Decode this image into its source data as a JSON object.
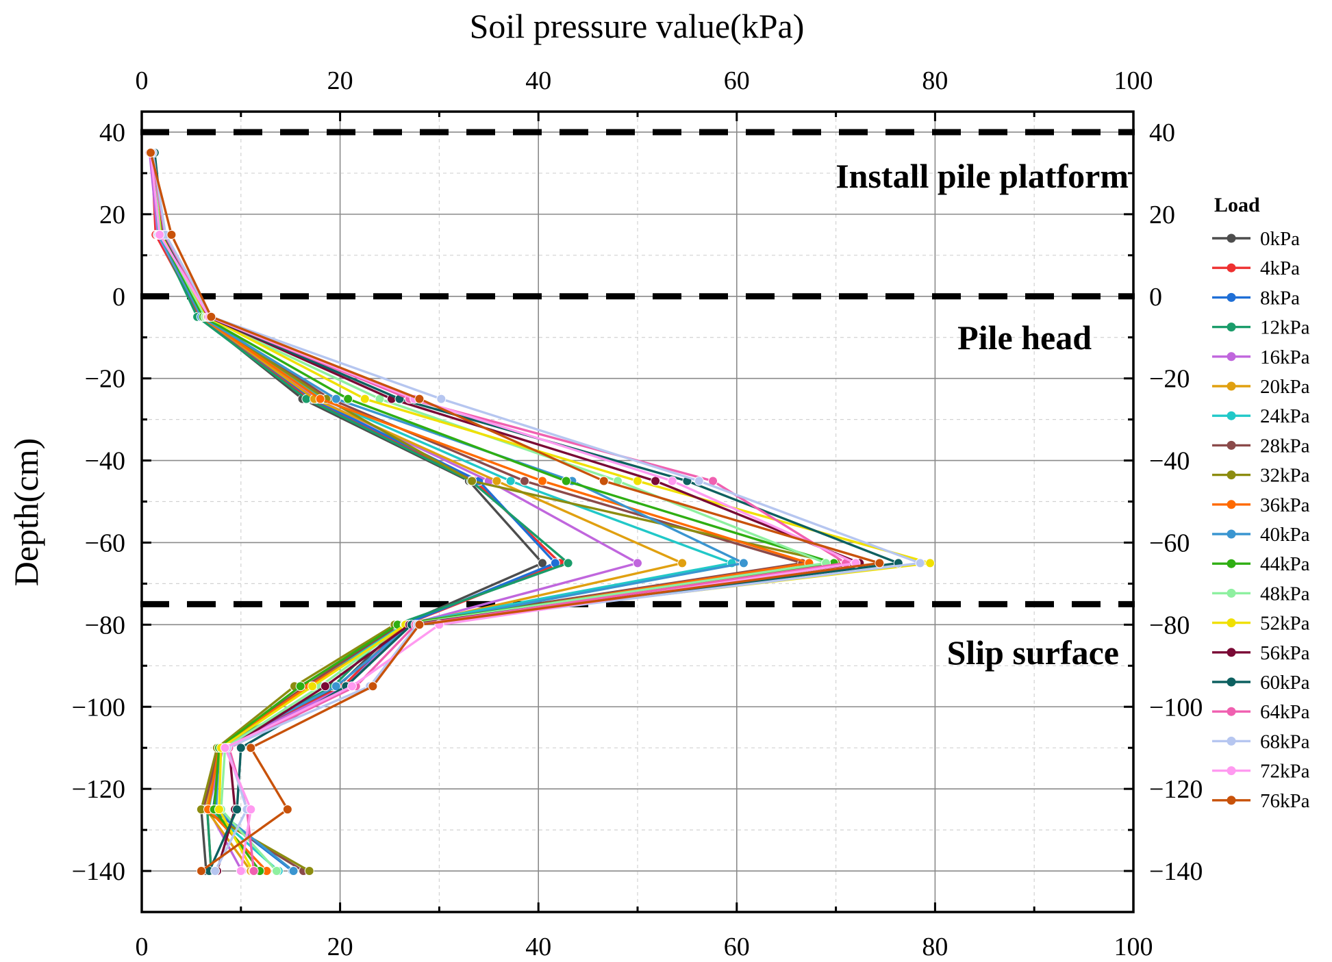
{
  "chart_data": {
    "type": "line",
    "title": "",
    "xlabel": "Soil pressure value(kPa)",
    "ylabel": "Depth(cm)",
    "xlim": [
      0,
      100
    ],
    "ylim": [
      -150,
      45
    ],
    "x_ticks": [
      "0",
      "20",
      "40",
      "60",
      "80",
      "100"
    ],
    "y_ticks": [
      "40",
      "20",
      "0",
      "-20",
      "-40",
      "-60",
      "-80",
      "-100",
      "-120",
      "-140"
    ],
    "depths": [
      35,
      15,
      -5,
      -25,
      -45,
      -65,
      -80,
      -95,
      -110,
      -125,
      -140
    ],
    "reference_lines": [
      {
        "depth": 40,
        "label": "Install pile platform"
      },
      {
        "depth": 0,
        "label": "Pile head"
      },
      {
        "depth": -75,
        "label": "Slip surface"
      }
    ],
    "legend_title": "Load",
    "series": [
      {
        "name": "0kPa",
        "color": "#4d4d4d",
        "values": [
          1.2,
          1.5,
          5.8,
          16.2,
          33.0,
          40.4,
          26.2,
          19.8,
          7.8,
          6.0,
          6.5
        ]
      },
      {
        "name": "4kPa",
        "color": "#ee3030",
        "values": [
          1.0,
          1.4,
          5.9,
          16.8,
          33.6,
          42.2,
          26.5,
          20.3,
          8.0,
          6.6,
          7.0
        ]
      },
      {
        "name": "8kPa",
        "color": "#1f6fd6",
        "values": [
          1.3,
          1.6,
          6.0,
          17.2,
          34.0,
          41.7,
          26.4,
          20.7,
          8.0,
          7.2,
          15.2
        ]
      },
      {
        "name": "12kPa",
        "color": "#1a9c6a",
        "values": [
          1.1,
          1.7,
          5.6,
          16.6,
          33.2,
          43.0,
          25.6,
          19.3,
          7.6,
          6.6,
          7.0
        ]
      },
      {
        "name": "16kPa",
        "color": "#c066dd",
        "values": [
          0.8,
          1.6,
          6.1,
          17.6,
          35.0,
          50.0,
          26.8,
          20.6,
          8.2,
          6.7,
          10.1
        ]
      },
      {
        "name": "20kPa",
        "color": "#e0a010",
        "values": [
          1.0,
          1.8,
          6.0,
          17.4,
          35.8,
          54.5,
          27.0,
          16.8,
          7.8,
          6.5,
          11.0
        ]
      },
      {
        "name": "24kPa",
        "color": "#21c8c8",
        "values": [
          1.1,
          1.7,
          6.1,
          18.2,
          37.2,
          59.5,
          26.2,
          17.0,
          7.6,
          6.8,
          13.8
        ]
      },
      {
        "name": "28kPa",
        "color": "#8b4a4a",
        "values": [
          1.0,
          1.8,
          6.3,
          19.0,
          38.6,
          66.6,
          26.0,
          16.5,
          7.8,
          6.2,
          16.3
        ]
      },
      {
        "name": "32kPa",
        "color": "#8c8c10",
        "values": [
          1.1,
          1.9,
          6.2,
          18.6,
          33.3,
          70.0,
          25.5,
          15.4,
          7.6,
          6.0,
          16.9
        ]
      },
      {
        "name": "36kPa",
        "color": "#ff6a00",
        "values": [
          1.0,
          1.9,
          6.0,
          18.0,
          40.4,
          67.3,
          27.0,
          16.8,
          7.8,
          6.7,
          12.6
        ]
      },
      {
        "name": "40kPa",
        "color": "#3a95d0",
        "values": [
          1.1,
          1.8,
          6.0,
          19.6,
          43.4,
          60.7,
          27.2,
          19.6,
          7.8,
          7.5,
          15.3
        ]
      },
      {
        "name": "44kPa",
        "color": "#2fae13",
        "values": [
          1.2,
          1.9,
          6.2,
          20.8,
          42.8,
          69.8,
          25.8,
          16.0,
          7.8,
          7.3,
          11.9
        ]
      },
      {
        "name": "48kPa",
        "color": "#8ef0a0",
        "values": [
          1.2,
          2.0,
          6.4,
          24.0,
          48.0,
          69.0,
          26.5,
          18.0,
          8.4,
          8.0,
          13.6
        ]
      },
      {
        "name": "52kPa",
        "color": "#f0e000",
        "values": [
          1.3,
          2.1,
          6.6,
          22.5,
          50.0,
          79.5,
          26.6,
          17.2,
          8.0,
          7.8,
          11.2
        ]
      },
      {
        "name": "56kPa",
        "color": "#7a0a35",
        "values": [
          1.2,
          2.2,
          6.7,
          25.2,
          51.8,
          72.4,
          27.0,
          18.5,
          8.8,
          9.4,
          7.6
        ]
      },
      {
        "name": "60kPa",
        "color": "#0d6060",
        "values": [
          1.3,
          2.2,
          6.8,
          26.0,
          55.0,
          76.3,
          27.2,
          20.6,
          10.0,
          9.6,
          6.8
        ]
      },
      {
        "name": "64kPa",
        "color": "#f060b0",
        "values": [
          1.0,
          2.3,
          6.8,
          27.0,
          57.6,
          71.0,
          27.6,
          21.6,
          8.8,
          10.6,
          11.3
        ]
      },
      {
        "name": "68kPa",
        "color": "#b6c6f0",
        "values": [
          1.1,
          2.4,
          7.0,
          30.2,
          56.2,
          78.5,
          27.8,
          23.0,
          8.6,
          10.6,
          7.4
        ]
      },
      {
        "name": "72kPa",
        "color": "#ff9af0",
        "values": [
          0.9,
          1.8,
          6.8,
          27.5,
          53.5,
          72.0,
          30.0,
          21.2,
          8.4,
          11.0,
          10.0
        ]
      },
      {
        "name": "76kPa",
        "color": "#c8520a",
        "values": [
          0.9,
          3.0,
          7.0,
          28.0,
          46.6,
          74.4,
          28.0,
          23.3,
          11.0,
          14.7,
          6.0
        ]
      }
    ]
  }
}
